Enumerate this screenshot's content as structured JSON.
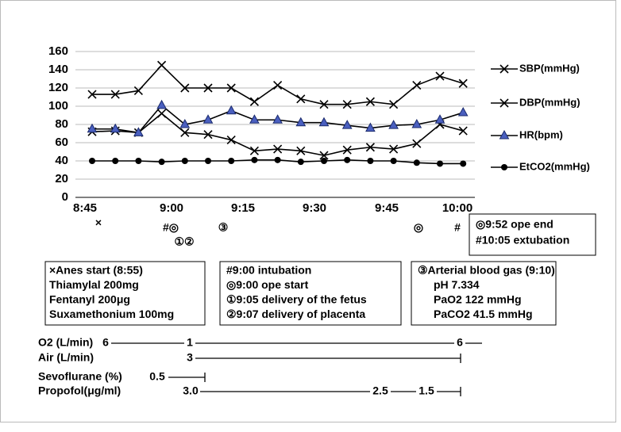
{
  "chart_data": {
    "type": "line",
    "x_labels": [
      "8:45",
      "9:00",
      "9:15",
      "9:30",
      "9:45",
      "10:00"
    ],
    "ylim": [
      0,
      160
    ],
    "yticks": [
      0,
      20,
      40,
      60,
      80,
      100,
      120,
      140,
      160
    ],
    "grid": true,
    "series": [
      {
        "name": "SBP(mmHg)",
        "color": "#000000",
        "marker": "x",
        "values": [
          113,
          113,
          117,
          145,
          120,
          120,
          120,
          105,
          123,
          108,
          102,
          102,
          105,
          102,
          123,
          133,
          125
        ]
      },
      {
        "name": "DBP(mmHg)",
        "color": "#000000",
        "marker": "x",
        "values": [
          72,
          73,
          71,
          92,
          71,
          69,
          63,
          51,
          53,
          51,
          46,
          52,
          55,
          53,
          59,
          80,
          73
        ]
      },
      {
        "name": "HR(bpm)",
        "color": "#4a5fbf",
        "marker": "triangle",
        "values": [
          75,
          75,
          71,
          101,
          80,
          85,
          95,
          85,
          85,
          82,
          82,
          79,
          76,
          79,
          80,
          85,
          93
        ]
      },
      {
        "name": "EtCO2(mmHg)",
        "color": "#000000",
        "marker": "circle",
        "values": [
          40,
          40,
          40,
          39,
          40,
          40,
          40,
          41,
          41,
          39,
          40,
          41,
          40,
          40,
          38,
          37,
          37
        ]
      }
    ]
  },
  "events": [
    "×",
    "#◎",
    "①②",
    "③",
    "◎",
    "#"
  ],
  "end_box": [
    "◎9:52 ope end",
    "#10:05 extubation"
  ],
  "boxes": [
    [
      "×Anes start  (8:55)",
      "Thiamylal  200mg",
      "Fentanyl  200μg",
      "Suxamethonium  100mg"
    ],
    [
      "#9:00 intubation",
      "◎9:00 ope start",
      "①9:05 delivery of the fetus",
      "②9:07 delivery of placenta"
    ],
    [
      "③Arterial blood gas (9:10)",
      "pH  7.334",
      "PaO2  122 mmHg",
      "PaCO2  41.5 mmHg"
    ]
  ],
  "infusions": [
    {
      "label": "O2 (L/min)",
      "marks": [
        "6",
        "1",
        "6"
      ]
    },
    {
      "label": "Air (L/min)",
      "marks": [
        "3"
      ]
    },
    {
      "label": "Sevoflurane (%)",
      "marks": [
        "0.5"
      ]
    },
    {
      "label": "Propofol(μg/ml)",
      "marks": [
        "3.0",
        "2.5",
        "1.5"
      ]
    }
  ]
}
